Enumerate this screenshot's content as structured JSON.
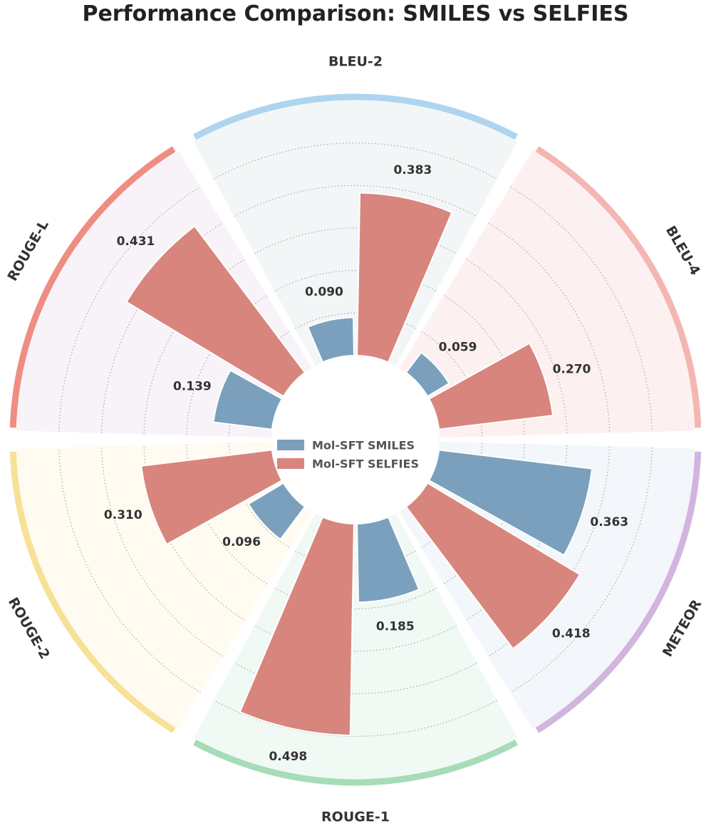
{
  "chart_data": {
    "type": "bar",
    "subtype": "polar-bar",
    "title": "Performance Comparison: SMILES vs SELFIES",
    "categories": [
      "BLEU-2",
      "BLEU-4",
      "METEOR",
      "ROUGE-1",
      "ROUGE-2",
      "ROUGE-L"
    ],
    "series": [
      {
        "name": "Mol-SFT SMILES",
        "color": "#7aa0bd",
        "values": [
          0.09,
          0.059,
          0.363,
          0.185,
          0.096,
          0.139
        ],
        "labels": [
          "0.090",
          "0.059",
          "0.363",
          "0.185",
          "0.096",
          "0.139"
        ]
      },
      {
        "name": "Mol-SFT SELFIES",
        "color": "#d8857d",
        "values": [
          0.383,
          0.27,
          0.418,
          0.498,
          0.31,
          0.431
        ],
        "labels": [
          "0.383",
          "0.270",
          "0.418",
          "0.498",
          "0.310",
          "0.431"
        ]
      }
    ],
    "category_colors": [
      "#aed4f0",
      "#f4b6b2",
      "#d2b5df",
      "#a6dcb7",
      "#f6e196",
      "#ef8d83"
    ],
    "sector_colors": [
      "#f2f6f7",
      "#fdf0f0",
      "#f3f6fa",
      "#f0f9f3",
      "#fffbf1",
      "#f8f2f9"
    ],
    "rlim": [
      0,
      0.6
    ],
    "grid": true,
    "legend": "center"
  }
}
